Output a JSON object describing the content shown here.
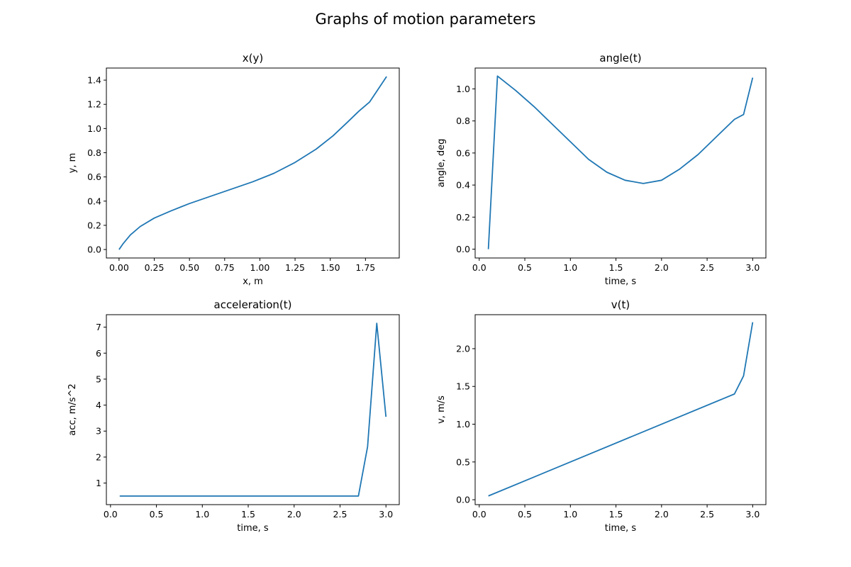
{
  "figure": {
    "suptitle": "Graphs of motion parameters"
  },
  "style": {
    "line_color": "#1f77b4",
    "axis_color": "#000000",
    "background": "#ffffff"
  },
  "chart_data": [
    {
      "type": "line",
      "title": "x(y)",
      "xlabel": "x, m",
      "ylabel": "y, m",
      "xlim": [
        -0.09,
        1.99
      ],
      "ylim": [
        -0.07,
        1.5
      ],
      "xticks": [
        0.0,
        0.25,
        0.5,
        0.75,
        1.0,
        1.25,
        1.5,
        1.75
      ],
      "xtick_labels": [
        "0.00",
        "0.25",
        "0.50",
        "0.75",
        "1.00",
        "1.25",
        "1.50",
        "1.75"
      ],
      "yticks": [
        0.0,
        0.2,
        0.4,
        0.6,
        0.8,
        1.0,
        1.2,
        1.4
      ],
      "ytick_labels": [
        "0.0",
        "0.2",
        "0.4",
        "0.6",
        "0.8",
        "1.0",
        "1.2",
        "1.4"
      ],
      "grid": false,
      "series": [
        {
          "x": [
            0.0,
            0.03,
            0.08,
            0.15,
            0.25,
            0.37,
            0.5,
            0.65,
            0.8,
            0.95,
            1.1,
            1.25,
            1.4,
            1.52,
            1.62,
            1.7,
            1.78,
            1.9
          ],
          "y": [
            0.0,
            0.05,
            0.12,
            0.19,
            0.26,
            0.32,
            0.38,
            0.44,
            0.5,
            0.56,
            0.63,
            0.72,
            0.83,
            0.94,
            1.05,
            1.14,
            1.22,
            1.43
          ]
        }
      ]
    },
    {
      "type": "line",
      "title": "angle(t)",
      "xlabel": "time, s",
      "ylabel": "angle, deg",
      "xlim": [
        -0.045,
        3.145
      ],
      "ylim": [
        -0.055,
        1.13
      ],
      "xticks": [
        0.0,
        0.5,
        1.0,
        1.5,
        2.0,
        2.5,
        3.0
      ],
      "xtick_labels": [
        "0.0",
        "0.5",
        "1.0",
        "1.5",
        "2.0",
        "2.5",
        "3.0"
      ],
      "yticks": [
        0.0,
        0.2,
        0.4,
        0.6,
        0.8,
        1.0
      ],
      "ytick_labels": [
        "0.0",
        "0.2",
        "0.4",
        "0.6",
        "0.8",
        "1.0"
      ],
      "grid": false,
      "series": [
        {
          "x": [
            0.1,
            0.2,
            0.4,
            0.6,
            0.8,
            1.0,
            1.2,
            1.4,
            1.6,
            1.8,
            2.0,
            2.2,
            2.4,
            2.6,
            2.8,
            2.9,
            3.0
          ],
          "y": [
            0.0,
            1.08,
            0.99,
            0.89,
            0.78,
            0.67,
            0.56,
            0.48,
            0.43,
            0.41,
            0.43,
            0.5,
            0.59,
            0.7,
            0.81,
            0.84,
            1.07
          ]
        }
      ]
    },
    {
      "type": "line",
      "title": "acceleration(t)",
      "xlabel": "time, s",
      "ylabel": "acc, m/s^2",
      "xlim": [
        -0.045,
        3.145
      ],
      "ylim": [
        0.17,
        7.48
      ],
      "xticks": [
        0.0,
        0.5,
        1.0,
        1.5,
        2.0,
        2.5,
        3.0
      ],
      "xtick_labels": [
        "0.0",
        "0.5",
        "1.0",
        "1.5",
        "2.0",
        "2.5",
        "3.0"
      ],
      "yticks": [
        1,
        2,
        3,
        4,
        5,
        6,
        7
      ],
      "ytick_labels": [
        "1",
        "2",
        "3",
        "4",
        "5",
        "6",
        "7"
      ],
      "grid": false,
      "series": [
        {
          "x": [
            0.1,
            0.5,
            1.0,
            1.5,
            2.0,
            2.5,
            2.7,
            2.8,
            2.9,
            3.0
          ],
          "y": [
            0.5,
            0.5,
            0.5,
            0.5,
            0.5,
            0.5,
            0.5,
            2.4,
            7.15,
            3.55
          ]
        }
      ]
    },
    {
      "type": "line",
      "title": "v(t)",
      "xlabel": "time, s",
      "ylabel": "v, m/s",
      "xlim": [
        -0.045,
        3.145
      ],
      "ylim": [
        -0.065,
        2.45
      ],
      "xticks": [
        0.0,
        0.5,
        1.0,
        1.5,
        2.0,
        2.5,
        3.0
      ],
      "xtick_labels": [
        "0.0",
        "0.5",
        "1.0",
        "1.5",
        "2.0",
        "2.5",
        "3.0"
      ],
      "yticks": [
        0.0,
        0.5,
        1.0,
        1.5,
        2.0
      ],
      "ytick_labels": [
        "0.0",
        "0.5",
        "1.0",
        "1.5",
        "2.0"
      ],
      "grid": false,
      "series": [
        {
          "x": [
            0.1,
            2.8,
            2.9,
            3.0
          ],
          "y": [
            0.05,
            1.4,
            1.64,
            2.35
          ]
        }
      ]
    }
  ]
}
